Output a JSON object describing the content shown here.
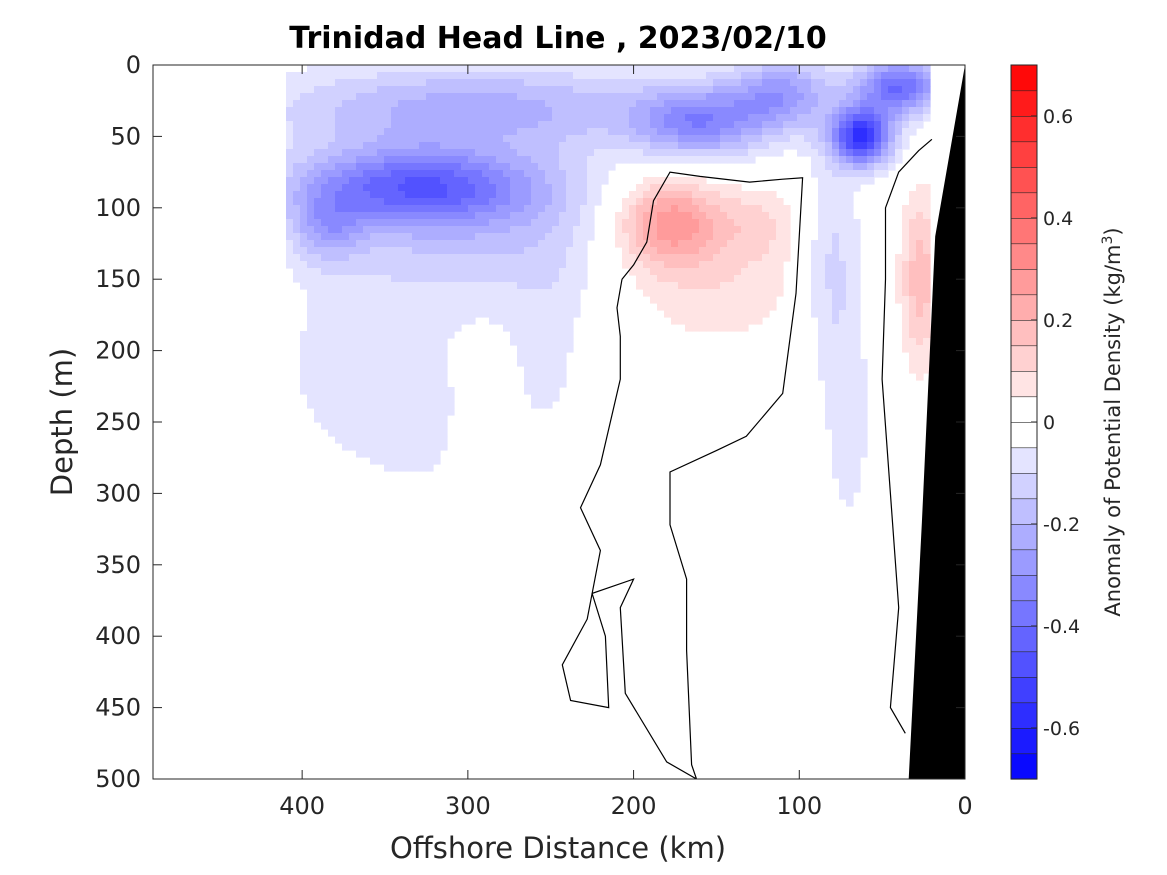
{
  "chart_data": {
    "type": "heatmap",
    "title": "Trinidad Head Line , 2023/02/10",
    "xlabel": "Offshore Distance (km)",
    "ylabel": "Depth (m)",
    "xlim": [
      490,
      0
    ],
    "ylim": [
      0,
      500
    ],
    "x_ticks": [
      "400",
      "300",
      "200",
      "100",
      "0"
    ],
    "y_ticks": [
      "0",
      "50",
      "100",
      "150",
      "200",
      "250",
      "300",
      "350",
      "400",
      "450",
      "500"
    ],
    "colorbar": {
      "label_main": "Anomaly of Potential Density (kg/m",
      "label_sup": "3",
      "label_close": ")",
      "range": [
        -0.7,
        0.7
      ],
      "step": 0.05,
      "ticks": [
        "0.6",
        "0.4",
        "0.2",
        "0",
        "-0.2",
        "-0.4",
        "-0.6"
      ],
      "negative_color": "#0000ff",
      "positive_color": "#ff0000",
      "neutral_color": "#ffffff"
    },
    "grid": false,
    "data_extent_km": [
      410,
      20
    ],
    "blobs": [
      {
        "x": 330,
        "y": 85,
        "sx": 75,
        "sy": 28,
        "a": -0.42
      },
      {
        "x": 385,
        "y": 115,
        "sx": 22,
        "sy": 25,
        "a": -0.18
      },
      {
        "x": 300,
        "y": 125,
        "sx": 70,
        "sy": 40,
        "a": -0.12
      },
      {
        "x": 300,
        "y": 30,
        "sx": 120,
        "sy": 30,
        "a": -0.22
      },
      {
        "x": 360,
        "y": 210,
        "sx": 60,
        "sy": 80,
        "a": -0.08
      },
      {
        "x": 300,
        "y": 330,
        "sx": 60,
        "sy": 90,
        "a": -0.04
      },
      {
        "x": 250,
        "y": 170,
        "sx": 30,
        "sy": 110,
        "a": -0.06
      },
      {
        "x": 160,
        "y": 40,
        "sx": 40,
        "sy": 25,
        "a": -0.3
      },
      {
        "x": 110,
        "y": 20,
        "sx": 30,
        "sy": 25,
        "a": -0.25
      },
      {
        "x": 62,
        "y": 50,
        "sx": 18,
        "sy": 20,
        "a": -0.55
      },
      {
        "x": 40,
        "y": 15,
        "sx": 25,
        "sy": 20,
        "a": -0.4
      },
      {
        "x": 80,
        "y": 140,
        "sx": 18,
        "sy": 80,
        "a": -0.12
      },
      {
        "x": 70,
        "y": 260,
        "sx": 15,
        "sy": 80,
        "a": -0.07
      },
      {
        "x": 178,
        "y": 110,
        "sx": 30,
        "sy": 30,
        "a": 0.26
      },
      {
        "x": 150,
        "y": 150,
        "sx": 55,
        "sy": 50,
        "a": 0.09
      },
      {
        "x": 125,
        "y": 110,
        "sx": 25,
        "sy": 25,
        "a": 0.08
      },
      {
        "x": 27,
        "y": 150,
        "sx": 12,
        "sy": 60,
        "a": 0.18
      },
      {
        "x": 25,
        "y": 380,
        "sx": 8,
        "sy": 100,
        "a": 0.05
      }
    ],
    "zero_contour": [
      [
        [
          207,
          150
        ],
        [
          200,
          140
        ],
        [
          192,
          124
        ],
        [
          188,
          95
        ],
        [
          178,
          75
        ],
        [
          160,
          78
        ],
        [
          130,
          82
        ],
        [
          110,
          80
        ],
        [
          98,
          79
        ],
        [
          102,
          160
        ],
        [
          110,
          230
        ],
        [
          132,
          260
        ],
        [
          150,
          270
        ],
        [
          178,
          285
        ],
        [
          178,
          322
        ],
        [
          168,
          360
        ],
        [
          168,
          410
        ],
        [
          165,
          490
        ],
        [
          162,
          500
        ],
        [
          180,
          488
        ],
        [
          205,
          440
        ],
        [
          208,
          380
        ],
        [
          200,
          360
        ],
        [
          225,
          370
        ],
        [
          217,
          400
        ],
        [
          215,
          450
        ],
        [
          238,
          445
        ],
        [
          243,
          420
        ],
        [
          228,
          388
        ],
        [
          220,
          340
        ],
        [
          232,
          310
        ],
        [
          220,
          280
        ],
        [
          208,
          220
        ],
        [
          208,
          190
        ],
        [
          210,
          170
        ],
        [
          207,
          150
        ]
      ],
      [
        [
          20,
          52
        ],
        [
          28,
          60
        ],
        [
          40,
          75
        ],
        [
          48,
          100
        ],
        [
          48,
          150
        ],
        [
          50,
          220
        ],
        [
          45,
          300
        ],
        [
          40,
          380
        ],
        [
          45,
          450
        ],
        [
          36,
          468
        ]
      ]
    ],
    "bathymetry": [
      [
        20,
        500
      ],
      [
        34,
        500
      ],
      [
        26,
        320
      ],
      [
        18,
        120
      ],
      [
        0,
        0
      ]
    ]
  }
}
